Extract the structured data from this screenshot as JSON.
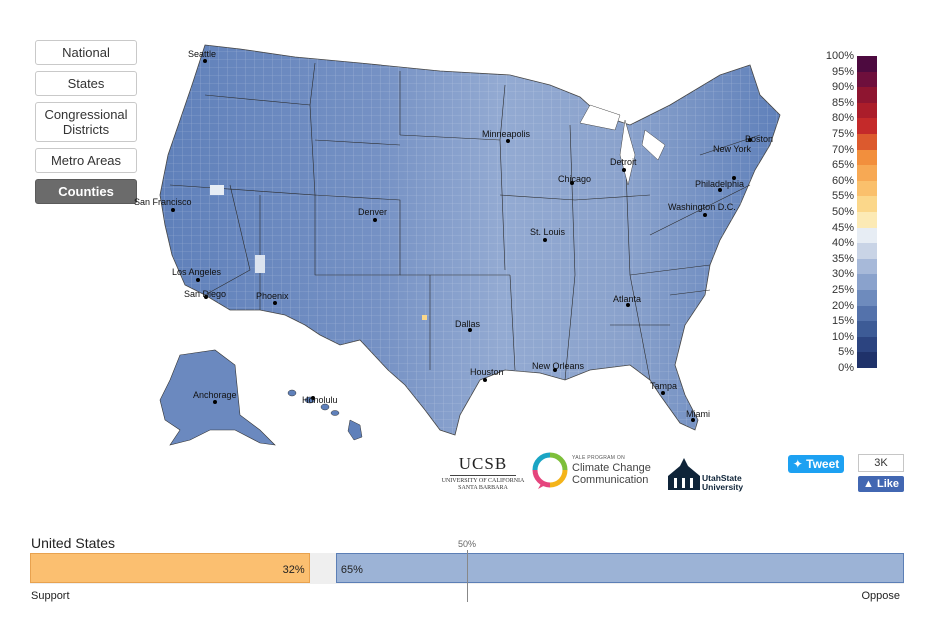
{
  "nav": {
    "items": [
      {
        "label": "National",
        "active": false
      },
      {
        "label": "States",
        "active": false
      },
      {
        "label": "Congressional Districts",
        "active": false
      },
      {
        "label": "Metro Areas",
        "active": false
      },
      {
        "label": "Counties",
        "active": true
      }
    ]
  },
  "map": {
    "cities": [
      "Seattle",
      "San Francisco",
      "Los Angeles",
      "San Diego",
      "Phoenix",
      "Denver",
      "Dallas",
      "Houston",
      "Minneapolis",
      "Chicago",
      "St. Louis",
      "Detroit",
      "New Orleans",
      "Atlanta",
      "Tampa",
      "Miami",
      "Washington D.C.",
      "Philadelphia",
      "New York",
      "Boston",
      "Anchorage",
      "Honolulu"
    ]
  },
  "legend": {
    "labels": [
      "100%",
      "95%",
      "90%",
      "85%",
      "80%",
      "75%",
      "70%",
      "65%",
      "60%",
      "55%",
      "50%",
      "45%",
      "40%",
      "35%",
      "30%",
      "25%",
      "20%",
      "15%",
      "10%",
      "5%",
      "0%"
    ],
    "colors": [
      "#4d0a3f",
      "#6e0f3c",
      "#8e1530",
      "#ab1d2a",
      "#c42a2a",
      "#dc5a2e",
      "#f28f3d",
      "#f7a954",
      "#fac06c",
      "#fbd78a",
      "#fceab5",
      "#e7edf4",
      "#c9d4e6",
      "#a7b9d9",
      "#8aa2cc",
      "#6e8bbd",
      "#5472ab",
      "#3d5b96",
      "#2c4480",
      "#1f326a",
      "#13204f"
    ]
  },
  "logos": {
    "ucsb_main": "UCSB",
    "ucsb_sub_1": "UNIVERSITY OF CALIFORNIA",
    "ucsb_sub_2": "SANTA BARBARA",
    "yale_small": "YALE PROGRAM ON",
    "yale_line1": "Climate Change",
    "yale_line2": "Communication",
    "usu_line1": "UtahState",
    "usu_line2": "University"
  },
  "social": {
    "tweet_label": "Tweet",
    "like_count": "3K",
    "like_label": "Like"
  },
  "summary": {
    "region": "United States",
    "midline_label": "50%",
    "support_label": "Support",
    "oppose_label": "Oppose",
    "support_text": "32%",
    "oppose_text": "65%",
    "support_pct": 32,
    "oppose_pct": 65,
    "support_color": "#fbbf70",
    "oppose_color": "#9cb3d6"
  }
}
